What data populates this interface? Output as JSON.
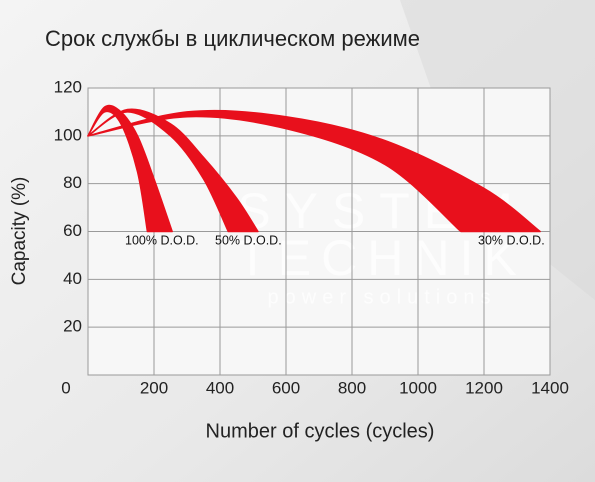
{
  "chart_data": {
    "type": "band",
    "title": "Срок службы в циклическом режиме",
    "x_label": "Number of cycles (cycles)",
    "y_label": "Capacity (%)",
    "xlim": [
      0,
      1400
    ],
    "xticks": [
      0,
      200,
      400,
      600,
      800,
      1000,
      1200,
      1400
    ],
    "ylim": [
      0,
      120
    ],
    "yticks": [
      20,
      40,
      60,
      80,
      100,
      120
    ],
    "grid": true,
    "watermark": [
      "SYSTEM",
      "TECHNIK",
      "power solutions"
    ],
    "series": [
      {
        "name": "100% D.O.D.",
        "color": "#e8101c",
        "x_upper": [
          0,
          50,
          100,
          150,
          200,
          255
        ],
        "upper": [
          100,
          112,
          110,
          100,
          82,
          60
        ],
        "x_lower": [
          0,
          50,
          100,
          150,
          180
        ],
        "lower": [
          100,
          110,
          105,
          85,
          60
        ]
      },
      {
        "name": "50% D.O.D.",
        "color": "#e8101c",
        "x_upper": [
          0,
          120,
          250,
          350,
          450,
          515
        ],
        "upper": [
          100,
          111,
          105,
          91,
          74,
          60
        ],
        "x_lower": [
          0,
          120,
          250,
          350,
          425
        ],
        "lower": [
          100,
          110,
          100,
          82,
          60
        ]
      },
      {
        "name": "30% D.O.D.",
        "color": "#e8101c",
        "x_upper": [
          0,
          300,
          600,
          900,
          1200,
          1370
        ],
        "upper": [
          100,
          110,
          108,
          98,
          78,
          60
        ],
        "x_lower": [
          0,
          300,
          600,
          900,
          1130
        ],
        "lower": [
          100,
          108,
          103,
          88,
          60
        ]
      }
    ]
  }
}
